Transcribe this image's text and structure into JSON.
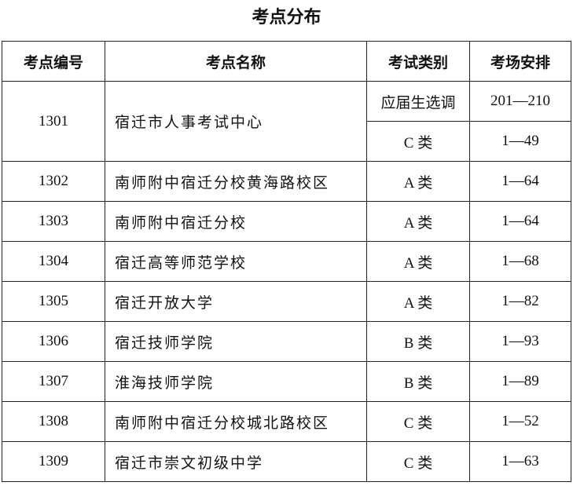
{
  "title": "考点分布",
  "table": {
    "header": [
      "考点编号",
      "考点名称",
      "考试类别",
      "考场安排"
    ],
    "rows": [
      {
        "code": "1301",
        "name": "宿迁市人事考试中心",
        "exams": [
          [
            "应届生选调",
            "201—210"
          ],
          [
            "C 类",
            "1—49"
          ]
        ]
      },
      {
        "code": "1302",
        "name": "南师附中宿迁分校黄海路校区",
        "exams": [
          [
            "A 类",
            "1—64"
          ]
        ]
      },
      {
        "code": "1303",
        "name": "南师附中宿迁分校",
        "exams": [
          [
            "A 类",
            "1—64"
          ]
        ]
      },
      {
        "code": "1304",
        "name": "宿迁高等师范学校",
        "exams": [
          [
            "A 类",
            "1—68"
          ]
        ]
      },
      {
        "code": "1305",
        "name": "宿迁开放大学",
        "exams": [
          [
            "A 类",
            "1—82"
          ]
        ]
      },
      {
        "code": "1306",
        "name": "宿迁技师学院",
        "exams": [
          [
            "B 类",
            "1—93"
          ]
        ]
      },
      {
        "code": "1307",
        "name": "淮海技师学院",
        "exams": [
          [
            "B 类",
            "1—89"
          ]
        ]
      },
      {
        "code": "1308",
        "name": "南师附中宿迁分校城北路校区",
        "exams": [
          [
            "C 类",
            "1—52"
          ]
        ]
      },
      {
        "code": "1309",
        "name": "宿迁市崇文初级中学",
        "exams": [
          [
            "C 类",
            "1—63"
          ]
        ]
      }
    ]
  }
}
